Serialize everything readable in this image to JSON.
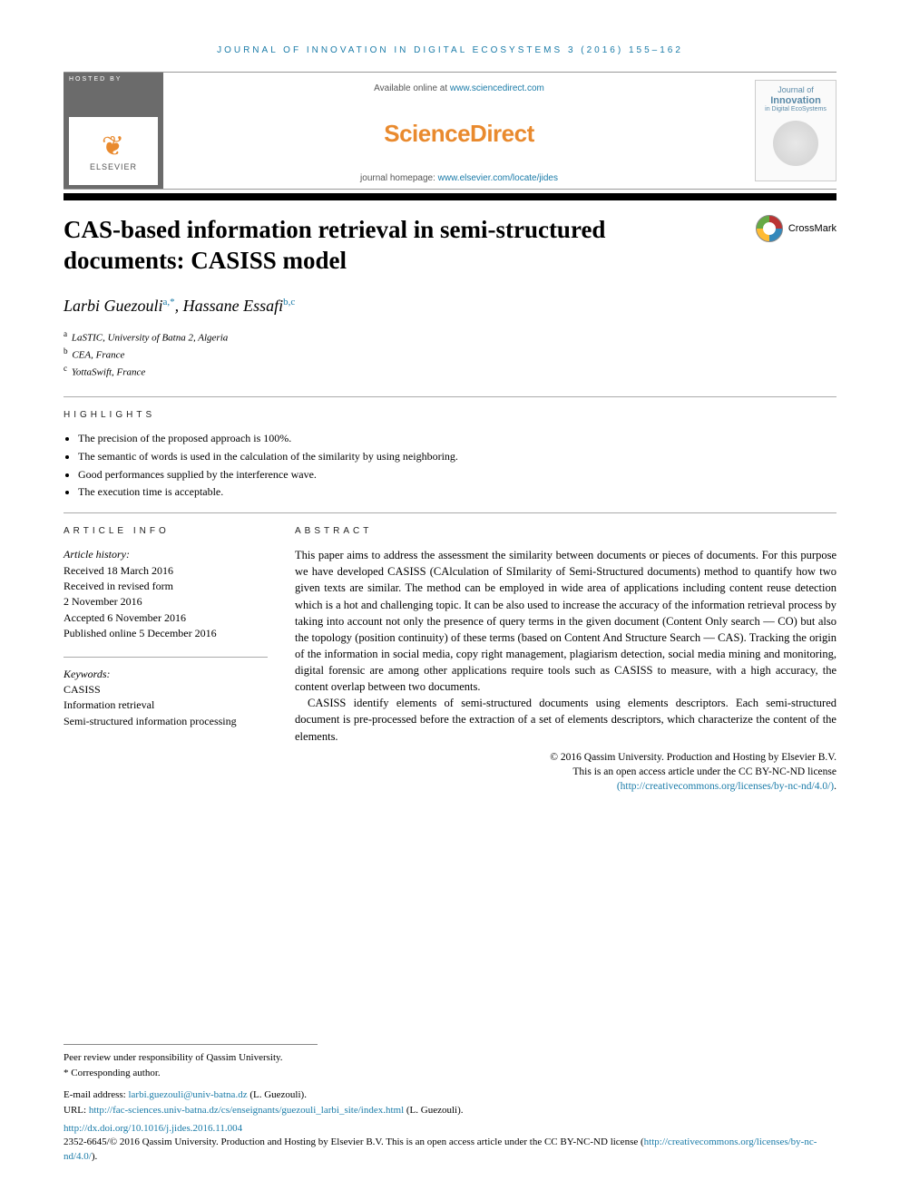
{
  "journal_ref": {
    "name": "JOURNAL OF INNOVATION IN DIGITAL ECOSYSTEMS",
    "volume": "3",
    "year": "(2016)",
    "pages": "155–162"
  },
  "banner": {
    "hosted_by": "HOSTED BY",
    "elsevier": "ELSEVIER",
    "available_prefix": "Available online at ",
    "available_url": "www.sciencedirect.com",
    "sd_logo": "ScienceDirect",
    "homepage_prefix": "journal homepage: ",
    "homepage_url": "www.elsevier.com/locate/jides",
    "cover_line1": "Journal of",
    "cover_line2": "Innovation",
    "cover_line3": "in Digital EcoSystems"
  },
  "crossmark_label": "CrossMark",
  "title": "CAS-based information retrieval in semi-structured documents: CASISS model",
  "authors": [
    {
      "name": "Larbi Guezouli",
      "marks": "a,*"
    },
    {
      "name": "Hassane Essafi",
      "marks": "b,c"
    }
  ],
  "affiliations": [
    {
      "mark": "a",
      "text": "LaSTIC, University of Batna 2, Algeria"
    },
    {
      "mark": "b",
      "text": "CEA, France"
    },
    {
      "mark": "c",
      "text": "YottaSwift, France"
    }
  ],
  "highlights_label": "HIGHLIGHTS",
  "highlights": [
    "The precision of the proposed approach is 100%.",
    "The semantic of words is used in the calculation of the similarity by using neighboring.",
    "Good performances supplied by the interference wave.",
    "The execution time is acceptable."
  ],
  "article_info_label": "ARTICLE INFO",
  "abstract_label": "ABSTRACT",
  "history": {
    "label": "Article history:",
    "lines": [
      "Received 18 March 2016",
      "Received in revised form",
      "2 November 2016",
      "Accepted 6 November 2016",
      "Published online 5 December 2016"
    ]
  },
  "keywords": {
    "label": "Keywords:",
    "items": [
      "CASISS",
      "Information retrieval",
      "Semi-structured information processing"
    ]
  },
  "abstract": {
    "p1": "This paper aims to address the assessment the similarity between documents or pieces of documents. For this purpose we have developed CASISS (CAlculation of SImilarity of Semi-Structured documents) method to quantify how two given texts are similar. The method can be employed in wide area of applications including content reuse detection which is a hot and challenging topic. It can be also used to increase the accuracy of the information retrieval process by taking into account not only the presence of query terms in the given document (Content Only search — CO) but also the topology (position continuity) of these terms (based on Content And Structure Search — CAS). Tracking the origin of the information in social media, copy right management, plagiarism detection, social media mining and monitoring, digital forensic are among other applications require tools such as CASISS to measure, with a high accuracy, the content overlap between two documents.",
    "p2": "CASISS identify elements of semi-structured documents using elements descriptors. Each semi-structured document is pre-processed before the extraction of a set of elements descriptors, which characterize the content of the elements."
  },
  "copyright": {
    "line1": "© 2016 Qassim University. Production and Hosting by Elsevier B.V.",
    "line2": "This is an open access article under the CC BY-NC-ND license",
    "license_url_text": "(http://creativecommons.org/licenses/by-nc-nd/4.0/)",
    "suffix": "."
  },
  "footnotes": {
    "peer": "Peer review under responsibility of Qassim University.",
    "corr_label": "* Corresponding author.",
    "email_label": "E-mail address: ",
    "email": "larbi.guezouli@univ-batna.dz",
    "email_who": " (L. Guezouli).",
    "url_label": "URL: ",
    "url": "http://fac-sciences.univ-batna.dz/cs/enseignants/guezouli_larbi_site/index.html",
    "url_who": " (L. Guezouli)."
  },
  "doi": {
    "url": "http://dx.doi.org/10.1016/j.jides.2016.11.004"
  },
  "license_footer": {
    "prefix": "2352-6645/© 2016 Qassim University. Production and Hosting by Elsevier B.V. This is an open access article under the CC BY-NC-ND license (",
    "url": "http://creativecommons.org/licenses/by-nc-nd/4.0/",
    "suffix": ")."
  }
}
